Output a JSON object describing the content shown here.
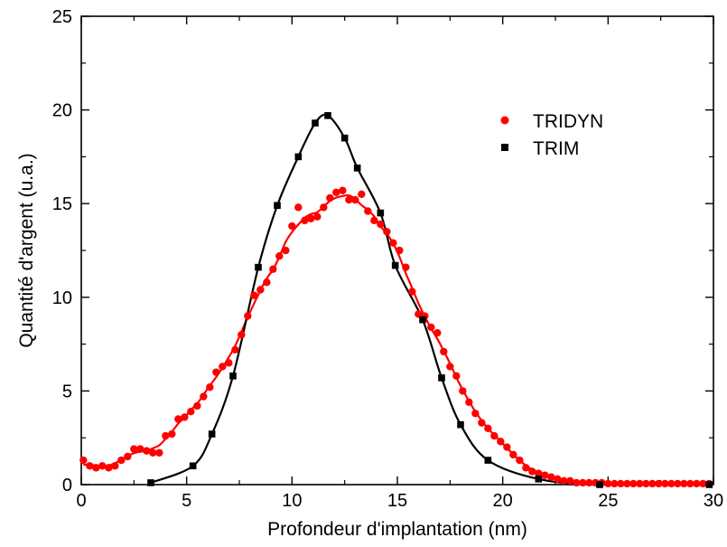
{
  "chart_data": {
    "type": "scatter",
    "xlabel": "Profondeur d'implantation (nm)",
    "ylabel": "Quantité d'argent (u.a.)",
    "xlim": [
      0,
      30
    ],
    "ylim": [
      0,
      25
    ],
    "xticks": [
      0,
      5,
      10,
      15,
      20,
      25,
      30
    ],
    "yticks": [
      0,
      5,
      10,
      15,
      20,
      25
    ],
    "grid": false,
    "legend_position": "top-right",
    "series": [
      {
        "name": "TRIDYN",
        "color": "#ff0000",
        "marker": "circle",
        "fit_line": true,
        "x": [
          0.1,
          0.4,
          0.7,
          1.0,
          1.3,
          1.6,
          1.9,
          2.2,
          2.5,
          2.8,
          3.1,
          3.4,
          3.7,
          4.0,
          4.3,
          4.6,
          4.9,
          5.2,
          5.5,
          5.8,
          6.1,
          6.4,
          6.7,
          7.0,
          7.3,
          7.6,
          7.9,
          8.2,
          8.5,
          8.8,
          9.1,
          9.4,
          9.7,
          10.0,
          10.3,
          10.6,
          10.9,
          11.2,
          11.5,
          11.8,
          12.1,
          12.4,
          12.7,
          13.0,
          13.3,
          13.6,
          13.9,
          14.2,
          14.5,
          14.8,
          15.1,
          15.4,
          15.7,
          16.0,
          16.3,
          16.6,
          16.9,
          17.2,
          17.5,
          17.8,
          18.1,
          18.4,
          18.7,
          19.0,
          19.3,
          19.6,
          19.9,
          20.2,
          20.5,
          20.8,
          21.1,
          21.4,
          21.7,
          22.0,
          22.3,
          22.6,
          22.9,
          23.2,
          23.5,
          23.8,
          24.1,
          24.4,
          24.7,
          25.0,
          25.3,
          25.6,
          25.9,
          26.2,
          26.5,
          26.8,
          27.1,
          27.4,
          27.7,
          28.0,
          28.3,
          28.6,
          28.9,
          29.2,
          29.5,
          29.8
        ],
        "y": [
          1.3,
          1.0,
          0.9,
          1.0,
          0.9,
          1.0,
          1.3,
          1.5,
          1.9,
          1.9,
          1.8,
          1.7,
          1.7,
          2.6,
          2.7,
          3.5,
          3.6,
          3.9,
          4.2,
          4.7,
          5.2,
          6.0,
          6.3,
          6.5,
          7.2,
          8.0,
          9.0,
          10.1,
          10.4,
          10.8,
          11.5,
          12.2,
          12.5,
          13.8,
          14.8,
          14.1,
          14.2,
          14.3,
          14.8,
          15.3,
          15.6,
          15.7,
          15.2,
          15.2,
          15.5,
          14.6,
          14.1,
          13.9,
          13.5,
          12.9,
          12.5,
          11.6,
          10.3,
          9.1,
          9.0,
          8.4,
          8.1,
          7.1,
          6.3,
          5.8,
          5.0,
          4.4,
          3.8,
          3.3,
          3.0,
          2.6,
          2.3,
          2.0,
          1.6,
          1.3,
          0.9,
          0.7,
          0.6,
          0.5,
          0.4,
          0.3,
          0.2,
          0.2,
          0.1,
          0.1,
          0.1,
          0.1,
          0.1,
          0.05,
          0.05,
          0.05,
          0.05,
          0.05,
          0.05,
          0.05,
          0.05,
          0.05,
          0.05,
          0.05,
          0.05,
          0.05,
          0.05,
          0.05,
          0.05,
          0.05
        ]
      },
      {
        "name": "TRIM",
        "color": "#000000",
        "marker": "square",
        "fit_line": true,
        "x": [
          3.3,
          5.3,
          6.2,
          7.2,
          8.4,
          9.3,
          10.3,
          11.1,
          11.7,
          12.5,
          13.1,
          14.2,
          14.9,
          16.2,
          17.1,
          18.0,
          19.3,
          21.7,
          24.6,
          29.8
        ],
        "y": [
          0.1,
          1.0,
          2.7,
          5.8,
          11.6,
          14.9,
          17.5,
          19.3,
          19.7,
          18.5,
          16.9,
          14.5,
          11.7,
          8.8,
          5.7,
          3.2,
          1.3,
          0.3,
          0.0,
          0.0
        ]
      }
    ]
  }
}
